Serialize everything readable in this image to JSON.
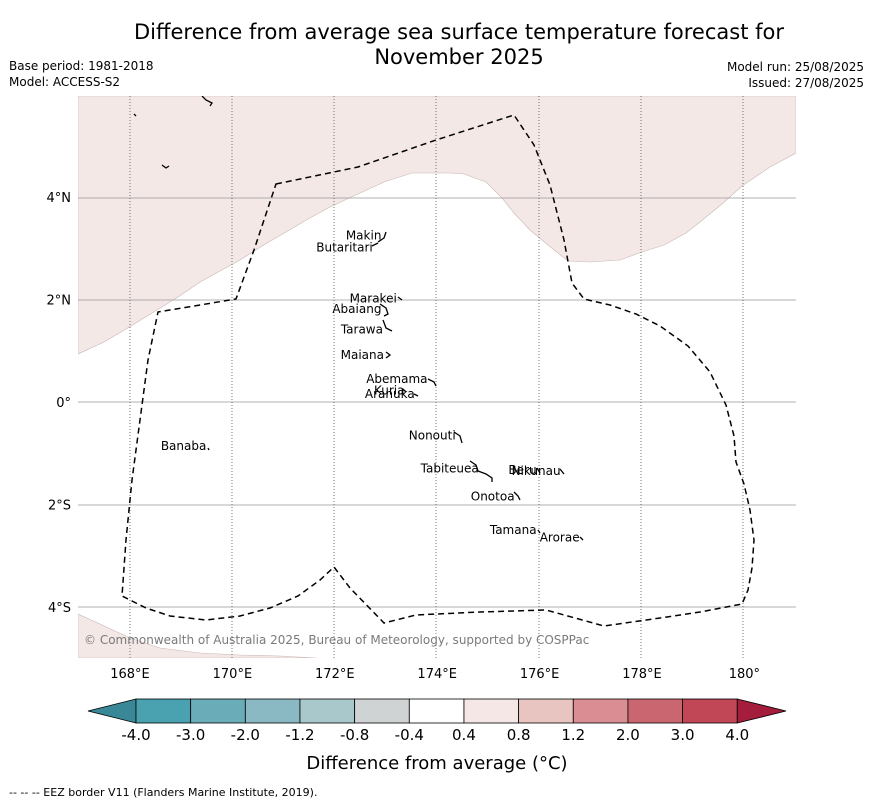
{
  "title_line1": "Difference from average sea surface temperature forecast for",
  "title_line2": "November 2025",
  "base_period": "Base period: 1981-2018",
  "model": "Model: ACCESS-S2",
  "model_run": "Model run: 25/08/2025",
  "issued": "Issued: 27/08/2025",
  "copyright": "© Commonwealth of Australia 2025, Bureau of Meteorology, supported by COSPPac",
  "footer_note": "--  --  -- EEZ border V11 (Flanders Marine Institute, 2019).",
  "lon_ticks": [
    "168°E",
    "170°E",
    "172°E",
    "174°E",
    "176°E",
    "178°E",
    "180°"
  ],
  "lat_ticks": [
    "4°N",
    "2°N",
    "0°",
    "2°S",
    "4°S"
  ],
  "map_extent": {
    "lon": [
      167,
      181
    ],
    "lat": [
      -5,
      6
    ]
  },
  "islands": [
    {
      "name": "Makin",
      "lon": 172.95,
      "lat": 3.25
    },
    {
      "name": "Butaritari",
      "lon": 172.78,
      "lat": 3.02
    },
    {
      "name": "Marakei",
      "lon": 173.25,
      "lat": 2.02
    },
    {
      "name": "Abaiang",
      "lon": 172.95,
      "lat": 1.82
    },
    {
      "name": "Tarawa",
      "lon": 172.98,
      "lat": 1.42
    },
    {
      "name": "Maiana",
      "lon": 173.0,
      "lat": 0.92
    },
    {
      "name": "Abemama",
      "lon": 173.85,
      "lat": 0.45
    },
    {
      "name": "Kuria",
      "lon": 173.4,
      "lat": 0.22
    },
    {
      "name": "Aranuka",
      "lon": 173.6,
      "lat": 0.16
    },
    {
      "name": "Banaba",
      "lon": 169.53,
      "lat": -0.86
    },
    {
      "name": "Nonouti",
      "lon": 174.4,
      "lat": -0.65
    },
    {
      "name": "Tabiteuea",
      "lon": 174.85,
      "lat": -1.3
    },
    {
      "name": "Beru",
      "lon": 175.98,
      "lat": -1.33
    },
    {
      "name": "Nikunau",
      "lon": 176.45,
      "lat": -1.35
    },
    {
      "name": "Onotoa",
      "lon": 175.55,
      "lat": -1.85
    },
    {
      "name": "Tamana",
      "lon": 175.98,
      "lat": -2.5
    },
    {
      "name": "Arorae",
      "lon": 176.82,
      "lat": -2.65
    }
  ],
  "colorbar": {
    "labels": [
      "-4.0",
      "-3.0",
      "-2.0",
      "-1.2",
      "-0.8",
      "-0.4",
      "0.4",
      "0.8",
      "1.2",
      "2.0",
      "3.0",
      "4.0"
    ],
    "colors": [
      "#3a8797",
      "#4aa2b1",
      "#6aadb9",
      "#8bb9c3",
      "#a9c8cc",
      "#d0d3d4",
      "#ffffff",
      "#f4e7e6",
      "#e9c5c1",
      "#da8e93",
      "#ca6670",
      "#c14656",
      "#a41d3c"
    ],
    "label": "Difference from average (°C)"
  },
  "shading_colors": {
    "warm_anomaly": "#f4e8e7"
  }
}
